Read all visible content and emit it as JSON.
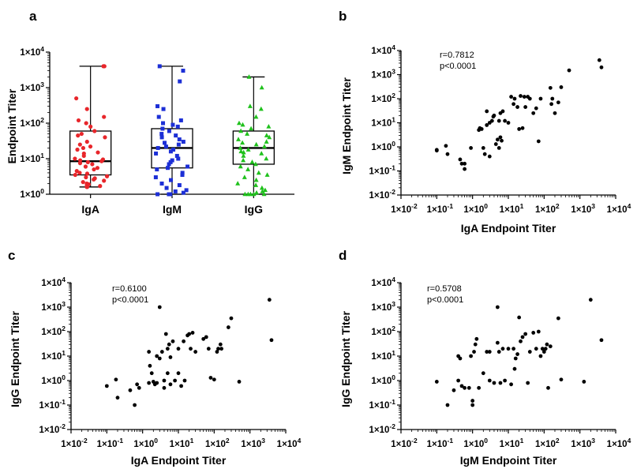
{
  "chart_data": [
    {
      "id": "a",
      "type": "box",
      "panel_letter": "a",
      "ylabel": "Endpoint Titer",
      "yscale": "log",
      "ylim": [
        1,
        10000
      ],
      "categories": [
        "IgA",
        "IgM",
        "IgG"
      ],
      "series": [
        {
          "name": "IgA",
          "color": "#e8262b",
          "marker": "circle",
          "box": {
            "min": 1.6,
            "q1": 3.5,
            "median": 8.5,
            "q3": 60,
            "max": 4000
          },
          "points": [
            4000,
            4000,
            500,
            250,
            150,
            120,
            100,
            80,
            60,
            50,
            45,
            40,
            30,
            25,
            22,
            20,
            18,
            15,
            14,
            12,
            10,
            9.5,
            9,
            8.5,
            8,
            7.5,
            7,
            6,
            5.5,
            5,
            4.5,
            4,
            3.8,
            3.5,
            3.2,
            3,
            2.8,
            2.6,
            2.4,
            2.2,
            2,
            1.9,
            1.8,
            1.7,
            1.6,
            1.6
          ]
        },
        {
          "name": "IgM",
          "color": "#1c2fd6",
          "marker": "square",
          "box": {
            "min": 1.0,
            "q1": 5.5,
            "median": 20,
            "q3": 70,
            "max": 4000
          },
          "points": [
            4000,
            3000,
            1500,
            300,
            250,
            150,
            120,
            100,
            90,
            80,
            70,
            60,
            50,
            45,
            40,
            35,
            30,
            28,
            25,
            22,
            20,
            18,
            16,
            14,
            12,
            10,
            9,
            8,
            7,
            6,
            5.5,
            5,
            4,
            3.5,
            3,
            2.5,
            2,
            1.8,
            1.5,
            1.3,
            1.2,
            1.1,
            1.0,
            1.0,
            1.0
          ]
        },
        {
          "name": "IgG",
          "color": "#1fc11c",
          "marker": "triangle",
          "box": {
            "min": 1.0,
            "q1": 7,
            "median": 20,
            "q3": 60,
            "max": 2000
          },
          "points": [
            2000,
            1000,
            300,
            250,
            150,
            100,
            90,
            80,
            70,
            60,
            50,
            45,
            40,
            35,
            30,
            28,
            25,
            22,
            20,
            18,
            16,
            15,
            14,
            12,
            10,
            9,
            8,
            7,
            6,
            5,
            4,
            3.5,
            3,
            2.5,
            2,
            1.8,
            1.5,
            1.3,
            1.2,
            1.1,
            1.0,
            1.0,
            1.0,
            1.0,
            1.0
          ]
        }
      ]
    },
    {
      "id": "b",
      "type": "scatter",
      "panel_letter": "b",
      "xlabel": "IgA Endpoint Titer",
      "ylabel": "IgM Endpoint Titer",
      "xscale": "log",
      "yscale": "log",
      "xlim": [
        0.01,
        10000
      ],
      "ylim": [
        0.01,
        10000
      ],
      "annotation": [
        "r=0.7812",
        "p<0.0001"
      ],
      "points": [
        [
          0.1,
          0.7
        ],
        [
          0.1,
          0.75
        ],
        [
          0.18,
          1.1
        ],
        [
          0.2,
          0.5
        ],
        [
          0.45,
          0.3
        ],
        [
          0.5,
          0.2
        ],
        [
          0.6,
          0.2
        ],
        [
          0.6,
          0.12
        ],
        [
          0.9,
          0.9
        ],
        [
          1.5,
          5
        ],
        [
          1.6,
          6
        ],
        [
          1.8,
          5.5
        ],
        [
          2,
          0.9
        ],
        [
          2.2,
          0.5
        ],
        [
          2.5,
          30
        ],
        [
          2.5,
          8
        ],
        [
          3,
          10
        ],
        [
          3,
          0.4
        ],
        [
          3.5,
          12
        ],
        [
          3.8,
          18
        ],
        [
          4,
          20
        ],
        [
          4.5,
          1.3
        ],
        [
          5,
          2
        ],
        [
          5.5,
          0.9
        ],
        [
          5.5,
          12
        ],
        [
          6,
          25
        ],
        [
          6,
          2.5
        ],
        [
          6.5,
          1.8
        ],
        [
          7,
          30
        ],
        [
          8,
          12
        ],
        [
          10,
          10
        ],
        [
          12,
          120
        ],
        [
          14,
          60
        ],
        [
          15,
          100
        ],
        [
          18,
          45
        ],
        [
          20,
          5.5
        ],
        [
          22,
          130
        ],
        [
          25,
          6
        ],
        [
          28,
          120
        ],
        [
          30,
          45
        ],
        [
          35,
          120
        ],
        [
          40,
          100
        ],
        [
          50,
          25
        ],
        [
          60,
          40
        ],
        [
          70,
          1.7
        ],
        [
          80,
          100
        ],
        [
          150,
          280
        ],
        [
          160,
          60
        ],
        [
          170,
          100
        ],
        [
          200,
          25
        ],
        [
          250,
          70
        ],
        [
          300,
          300
        ],
        [
          500,
          1500
        ],
        [
          3500,
          4000
        ],
        [
          4000,
          2000
        ]
      ]
    },
    {
      "id": "c",
      "type": "scatter",
      "panel_letter": "c",
      "xlabel": "IgA Endpoint Titer",
      "ylabel": "IgG Endpoint Titer",
      "xscale": "log",
      "yscale": "log",
      "xlim": [
        0.01,
        10000
      ],
      "ylim": [
        0.01,
        10000
      ],
      "annotation": [
        "r=0.6100",
        "p<0.0001"
      ],
      "points": [
        [
          0.1,
          0.6
        ],
        [
          0.18,
          1.1
        ],
        [
          0.2,
          0.2
        ],
        [
          0.45,
          0.4
        ],
        [
          0.6,
          0.1
        ],
        [
          0.7,
          0.7
        ],
        [
          0.8,
          0.5
        ],
        [
          1.5,
          15
        ],
        [
          1.5,
          0.8
        ],
        [
          1.6,
          4
        ],
        [
          1.8,
          2
        ],
        [
          2,
          0.9
        ],
        [
          2.2,
          0.7
        ],
        [
          2.5,
          10
        ],
        [
          2.5,
          0.8
        ],
        [
          3,
          1000
        ],
        [
          3,
          8
        ],
        [
          3.5,
          15
        ],
        [
          4,
          0.5
        ],
        [
          4,
          1
        ],
        [
          4.5,
          80
        ],
        [
          5,
          2
        ],
        [
          5,
          20
        ],
        [
          5.5,
          30
        ],
        [
          6,
          0.7
        ],
        [
          6,
          9
        ],
        [
          7,
          40
        ],
        [
          8,
          1
        ],
        [
          10,
          20
        ],
        [
          10,
          2
        ],
        [
          12,
          0.6
        ],
        [
          14,
          40
        ],
        [
          15,
          1
        ],
        [
          18,
          70
        ],
        [
          20,
          80
        ],
        [
          22,
          20
        ],
        [
          25,
          90
        ],
        [
          30,
          15
        ],
        [
          50,
          50
        ],
        [
          60,
          60
        ],
        [
          70,
          20
        ],
        [
          80,
          1.3
        ],
        [
          100,
          1.1
        ],
        [
          120,
          15
        ],
        [
          130,
          20
        ],
        [
          150,
          30
        ],
        [
          160,
          20
        ],
        [
          250,
          150
        ],
        [
          300,
          350
        ],
        [
          500,
          0.9
        ],
        [
          3500,
          2000
        ],
        [
          4000,
          45
        ]
      ]
    },
    {
      "id": "d",
      "type": "scatter",
      "panel_letter": "d",
      "xlabel": "IgM Endpoint Titer",
      "ylabel": "IgG Endpoint Titer",
      "xscale": "log",
      "yscale": "log",
      "xlim": [
        0.01,
        10000
      ],
      "ylim": [
        0.01,
        10000
      ],
      "annotation": [
        "r=0.5708",
        "p<0.0001"
      ],
      "points": [
        [
          0.1,
          0.9
        ],
        [
          0.2,
          0.1
        ],
        [
          0.3,
          0.4
        ],
        [
          0.4,
          1
        ],
        [
          0.4,
          10
        ],
        [
          0.45,
          8
        ],
        [
          0.5,
          0.6
        ],
        [
          0.6,
          0.5
        ],
        [
          0.8,
          0.5
        ],
        [
          0.9,
          10
        ],
        [
          1,
          0.15
        ],
        [
          1,
          0.1
        ],
        [
          1.1,
          15
        ],
        [
          1.2,
          30
        ],
        [
          1.3,
          50
        ],
        [
          1.5,
          0.5
        ],
        [
          2,
          2
        ],
        [
          2.5,
          15
        ],
        [
          3,
          1
        ],
        [
          3,
          15
        ],
        [
          4,
          0.8
        ],
        [
          5,
          1000
        ],
        [
          5,
          35
        ],
        [
          5.5,
          15
        ],
        [
          6,
          0.8
        ],
        [
          7,
          20
        ],
        [
          8,
          1
        ],
        [
          10,
          20
        ],
        [
          12,
          0.7
        ],
        [
          14,
          20
        ],
        [
          15,
          3
        ],
        [
          16,
          8
        ],
        [
          18,
          12
        ],
        [
          20,
          380
        ],
        [
          22,
          40
        ],
        [
          25,
          60
        ],
        [
          30,
          80
        ],
        [
          35,
          0.8
        ],
        [
          40,
          15
        ],
        [
          50,
          90
        ],
        [
          60,
          20
        ],
        [
          70,
          100
        ],
        [
          80,
          10
        ],
        [
          90,
          20
        ],
        [
          100,
          15
        ],
        [
          110,
          20
        ],
        [
          120,
          30
        ],
        [
          130,
          0.5
        ],
        [
          150,
          25
        ],
        [
          250,
          350
        ],
        [
          300,
          1.1
        ],
        [
          1300,
          0.9
        ],
        [
          2000,
          2000
        ],
        [
          4000,
          45
        ]
      ]
    }
  ]
}
